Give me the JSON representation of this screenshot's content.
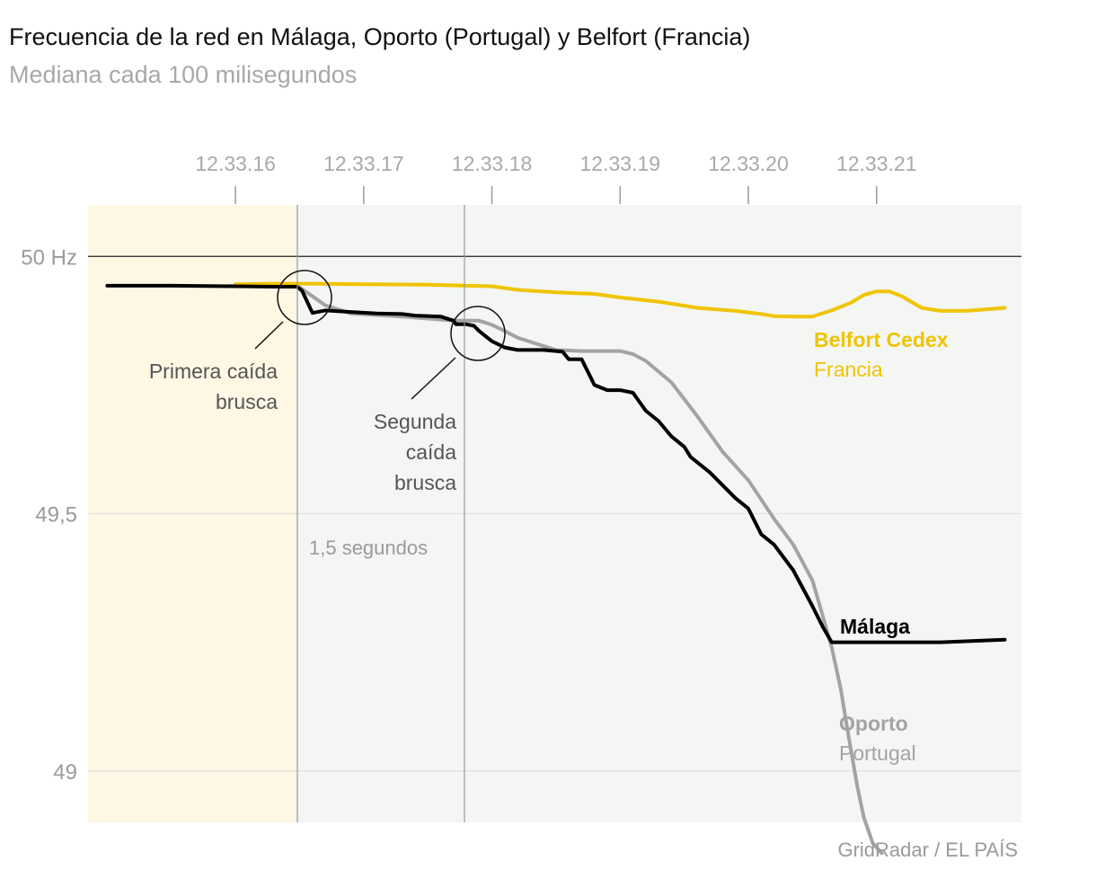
{
  "header": {
    "title": "Frecuencia de la red en Málaga, Oporto (Portugal) y Belfort (Francia)",
    "subtitle": "Mediana cada 100 milisegundos"
  },
  "colors": {
    "malaga": "#000000",
    "oporto": "#a3a3a3",
    "belfort": "#f0c400",
    "pre_event_band": "#fdf7e4",
    "plot_background": "#f4f6f4"
  },
  "source": "GridRadar / EL PAÍS",
  "annotations": {
    "first_drop": [
      "Primera caída",
      "brusca"
    ],
    "second_drop": [
      "Segunda",
      "caída",
      "brusca"
    ],
    "interval": "1,5 segundos"
  },
  "chart_data": {
    "type": "line",
    "title": "Frecuencia de la red en Málaga, Oporto (Portugal) y Belfort (Francia)",
    "subtitle": "Mediana cada 100 milisegundos",
    "x_unit": "seconds after 12.33.16",
    "x_ticks": [
      {
        "x": 0,
        "label": "12.33.16"
      },
      {
        "x": 1,
        "label": "12.33.17"
      },
      {
        "x": 2,
        "label": "12.33.18"
      },
      {
        "x": 3,
        "label": "12.33.19"
      },
      {
        "x": 4,
        "label": "12.33.20"
      },
      {
        "x": 5,
        "label": "12.33.21"
      }
    ],
    "xlim": [
      -1.15,
      6.13
    ],
    "ylim": [
      48.9,
      50.1
    ],
    "y_ticks": [
      {
        "y": 50,
        "label": "50 Hz"
      },
      {
        "y": 49.5,
        "label": "49,5"
      },
      {
        "y": 49,
        "label": "49"
      }
    ],
    "grid": true,
    "reference_line": 50,
    "legend": "direct labels at line ends",
    "series": [
      {
        "name": "Málaga",
        "label_lines": [
          "Málaga"
        ],
        "x": [
          -1.0,
          -0.5,
          0.0,
          0.3,
          0.48,
          0.52,
          0.6,
          0.7,
          0.9,
          1.1,
          1.3,
          1.4,
          1.6,
          1.7,
          1.72,
          1.8,
          1.86,
          1.9,
          2.0,
          2.1,
          2.2,
          2.4,
          2.55,
          2.6,
          2.7,
          2.8,
          2.9,
          3.0,
          3.1,
          3.2,
          3.3,
          3.4,
          3.5,
          3.55,
          3.7,
          3.9,
          4.0,
          4.1,
          4.2,
          4.35,
          4.5,
          4.58,
          4.65,
          5.0,
          5.5,
          6.0
        ],
        "y": [
          49.943,
          49.943,
          49.942,
          49.941,
          49.941,
          49.933,
          49.89,
          49.895,
          49.892,
          49.889,
          49.888,
          49.885,
          49.883,
          49.875,
          49.868,
          49.868,
          49.865,
          49.855,
          49.835,
          49.823,
          49.818,
          49.818,
          49.815,
          49.8,
          49.8,
          49.75,
          49.74,
          49.74,
          49.735,
          49.7,
          49.68,
          49.65,
          49.63,
          49.61,
          49.58,
          49.53,
          49.51,
          49.46,
          49.44,
          49.39,
          49.32,
          49.28,
          49.25,
          49.25,
          49.25,
          49.255
        ]
      },
      {
        "name": "Oporto",
        "label_lines": [
          "Oporto",
          "Portugal"
        ],
        "x": [
          0.5,
          0.7,
          0.9,
          1.1,
          1.3,
          1.5,
          1.7,
          1.9,
          2.0,
          2.1,
          2.2,
          2.35,
          2.5,
          2.7,
          2.85,
          3.0,
          3.1,
          3.2,
          3.4,
          3.6,
          3.8,
          4.0,
          4.2,
          4.35,
          4.5,
          4.57,
          4.65,
          4.72,
          4.78,
          4.85,
          4.9,
          4.97,
          5.04
        ],
        "y": [
          49.94,
          49.905,
          49.889,
          49.886,
          49.883,
          49.879,
          49.875,
          49.875,
          49.867,
          49.855,
          49.842,
          49.83,
          49.818,
          49.816,
          49.816,
          49.816,
          49.81,
          49.797,
          49.755,
          49.69,
          49.62,
          49.565,
          49.49,
          49.44,
          49.37,
          49.31,
          49.24,
          49.16,
          49.07,
          48.97,
          48.91,
          48.86,
          48.84
        ]
      },
      {
        "name": "Belfort Cedex",
        "label_lines": [
          "Belfort Cedex",
          "Francia"
        ],
        "x": [
          0.0,
          0.3,
          0.6,
          1.0,
          1.5,
          1.8,
          2.0,
          2.2,
          2.5,
          2.8,
          3.0,
          3.3,
          3.6,
          3.9,
          4.1,
          4.2,
          4.35,
          4.5,
          4.55,
          4.65,
          4.8,
          4.9,
          5.0,
          5.1,
          5.2,
          5.35,
          5.5,
          5.7,
          6.0
        ],
        "y": [
          49.946,
          49.947,
          49.947,
          49.946,
          49.945,
          49.943,
          49.942,
          49.935,
          49.93,
          49.927,
          49.92,
          49.912,
          49.9,
          49.894,
          49.888,
          49.884,
          49.883,
          49.883,
          49.887,
          49.895,
          49.91,
          49.925,
          49.932,
          49.932,
          49.922,
          49.9,
          49.894,
          49.894,
          49.9
        ]
      }
    ]
  }
}
